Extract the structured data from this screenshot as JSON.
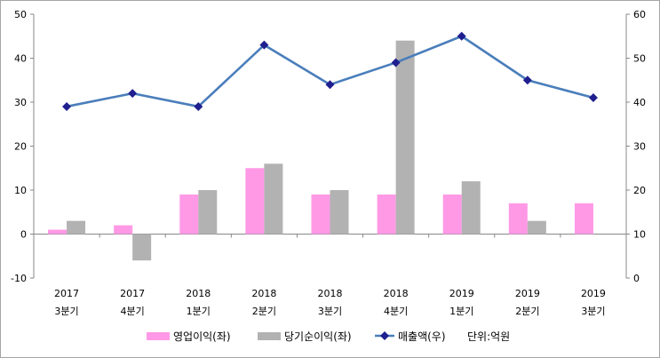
{
  "chart_data": {
    "type": "bar",
    "categories": [
      {
        "year": "2017",
        "quarter": "3분기"
      },
      {
        "year": "2017",
        "quarter": "4분기"
      },
      {
        "year": "2018",
        "quarter": "1분기"
      },
      {
        "year": "2018",
        "quarter": "2분기"
      },
      {
        "year": "2018",
        "quarter": "3분기"
      },
      {
        "year": "2018",
        "quarter": "4분기"
      },
      {
        "year": "2019",
        "quarter": "1분기"
      },
      {
        "year": "2019",
        "quarter": "2분기"
      },
      {
        "year": "2019",
        "quarter": "3분기"
      }
    ],
    "series": [
      {
        "name": "영업이익(좌)",
        "type": "bar",
        "axis": "left",
        "color": "#ff99e6",
        "values": [
          1,
          2,
          9,
          15,
          9,
          9,
          9,
          7,
          7
        ]
      },
      {
        "name": "당기순이익(좌)",
        "type": "bar",
        "axis": "left",
        "color": "#b2b2b2",
        "values": [
          3,
          -6,
          10,
          16,
          10,
          44,
          12,
          3,
          null
        ]
      },
      {
        "name": "매출액(우)",
        "type": "line",
        "axis": "right",
        "color": "#4a7ebb",
        "marker_color": "#1f1f8f",
        "values": [
          39,
          42,
          39,
          53,
          44,
          49,
          55,
          45,
          41
        ]
      }
    ],
    "y_left": {
      "min": -10,
      "max": 50,
      "ticks": [
        -10,
        0,
        10,
        20,
        30,
        40,
        50
      ]
    },
    "y_right": {
      "min": 0,
      "max": 60,
      "ticks": [
        0,
        10,
        20,
        30,
        40,
        50,
        60
      ]
    },
    "unit_note": "단위:억원",
    "grid": false,
    "legend_position": "bottom"
  }
}
